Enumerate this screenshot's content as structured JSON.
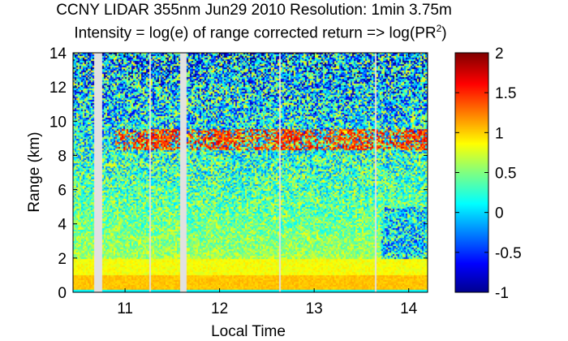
{
  "chart_data": {
    "type": "heatmap",
    "title": "CCNY LIDAR 355nm Jun29 2010 Resolution: 1min 3.75m",
    "subtitle_prefix": "Intensity = log(e) of range corrected return => log(PR",
    "subtitle_sup": "2",
    "subtitle_suffix": ")",
    "xlabel": "Local Time",
    "ylabel": "Range (km)",
    "xlim": [
      10.45,
      14.2
    ],
    "ylim": [
      0,
      14
    ],
    "x_ticks": [
      11,
      12,
      13,
      14
    ],
    "y_ticks": [
      0,
      2,
      4,
      6,
      8,
      10,
      12,
      14
    ],
    "colorbar": {
      "range": [
        -1,
        2
      ],
      "ticks": [
        -1,
        -0.5,
        0,
        0.5,
        1,
        1.5,
        2
      ],
      "tick_labels": [
        "-1",
        "-0.5",
        "0",
        "0.5",
        "1",
        "1.5",
        "2"
      ],
      "colormap": "jet"
    },
    "data_gaps_local_time": [
      [
        10.67,
        10.75
      ],
      [
        11.26,
        11.27
      ],
      [
        11.58,
        11.64
      ],
      [
        12.63,
        12.65
      ],
      [
        13.64,
        13.65
      ]
    ],
    "features": [
      {
        "description": "surface / boundary layer",
        "range_km": [
          0,
          2
        ],
        "intensity_approx": 0.9
      },
      {
        "description": "cloud layer",
        "time": [
          10.9,
          14.1
        ],
        "range_km": [
          8.5,
          9.5
        ],
        "intensity_approx": 1.4
      },
      {
        "description": "free troposphere",
        "range_km": [
          2,
          14
        ],
        "intensity_approx": 0.1
      }
    ],
    "grid": false
  }
}
